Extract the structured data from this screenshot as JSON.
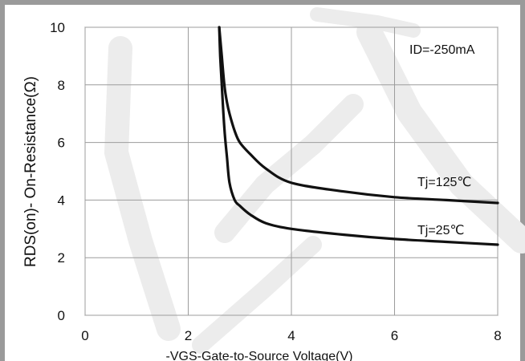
{
  "chart_data": {
    "type": "line",
    "xlabel": "-VGS-Gate-to-Source   Voltage(V)",
    "ylabel": "RDS(on)- On-Resistance(Ω)",
    "xlim": [
      0,
      8
    ],
    "ylim": [
      0,
      10
    ],
    "x_ticks": [
      "0",
      "2",
      "4",
      "6",
      "8"
    ],
    "y_ticks": [
      "0",
      "2",
      "4",
      "6",
      "8",
      "10"
    ],
    "grid": true,
    "condition": "ID=-250mA",
    "series": [
      {
        "name": "Tj=125℃",
        "x": [
          2.6,
          2.65,
          2.7,
          2.75,
          2.8,
          2.9,
          3.0,
          3.2,
          3.5,
          4.0,
          5.0,
          6.0,
          7.0,
          8.0
        ],
        "y": [
          10,
          9.0,
          8.0,
          7.4,
          7.0,
          6.4,
          6.0,
          5.6,
          5.1,
          4.6,
          4.3,
          4.1,
          4.0,
          3.9
        ]
      },
      {
        "name": "Tj=25℃",
        "x": [
          2.6,
          2.62,
          2.65,
          2.7,
          2.75,
          2.8,
          2.9,
          3.0,
          3.2,
          3.5,
          4.0,
          5.0,
          6.0,
          7.0,
          8.0
        ],
        "y": [
          10,
          9.0,
          8.0,
          6.5,
          5.5,
          4.6,
          4.0,
          3.8,
          3.5,
          3.2,
          3.0,
          2.8,
          2.65,
          2.55,
          2.45
        ]
      }
    ]
  }
}
